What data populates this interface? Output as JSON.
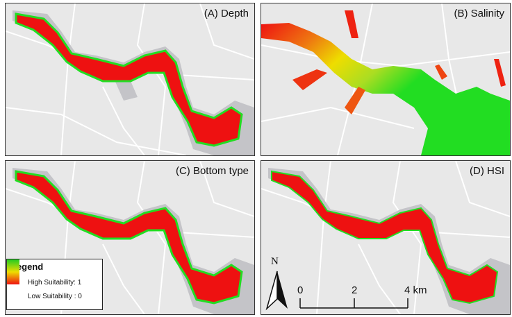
{
  "panels": {
    "a": {
      "label": "(A) Depth"
    },
    "b": {
      "label": "(B) Salinity"
    },
    "c": {
      "label": "(C) Bottom type"
    },
    "d": {
      "label": "(D) HSI"
    }
  },
  "legend": {
    "title": "Legend",
    "high_label": "High Suitability: 1",
    "low_label": "Low Suitability : 0",
    "colors": {
      "high": "#22cc22",
      "mid": "#eedd00",
      "low": "#ee1111"
    }
  },
  "north_arrow": {
    "letter": "N"
  },
  "scale_bar": {
    "labels": [
      "0",
      "2",
      "4 km"
    ]
  },
  "map_colors": {
    "background": "#e8e8e8",
    "roads": "#ffffff",
    "water_gray": "#c4c4c8",
    "suitability_low": "#ee1111",
    "suitability_high": "#22dd22"
  }
}
